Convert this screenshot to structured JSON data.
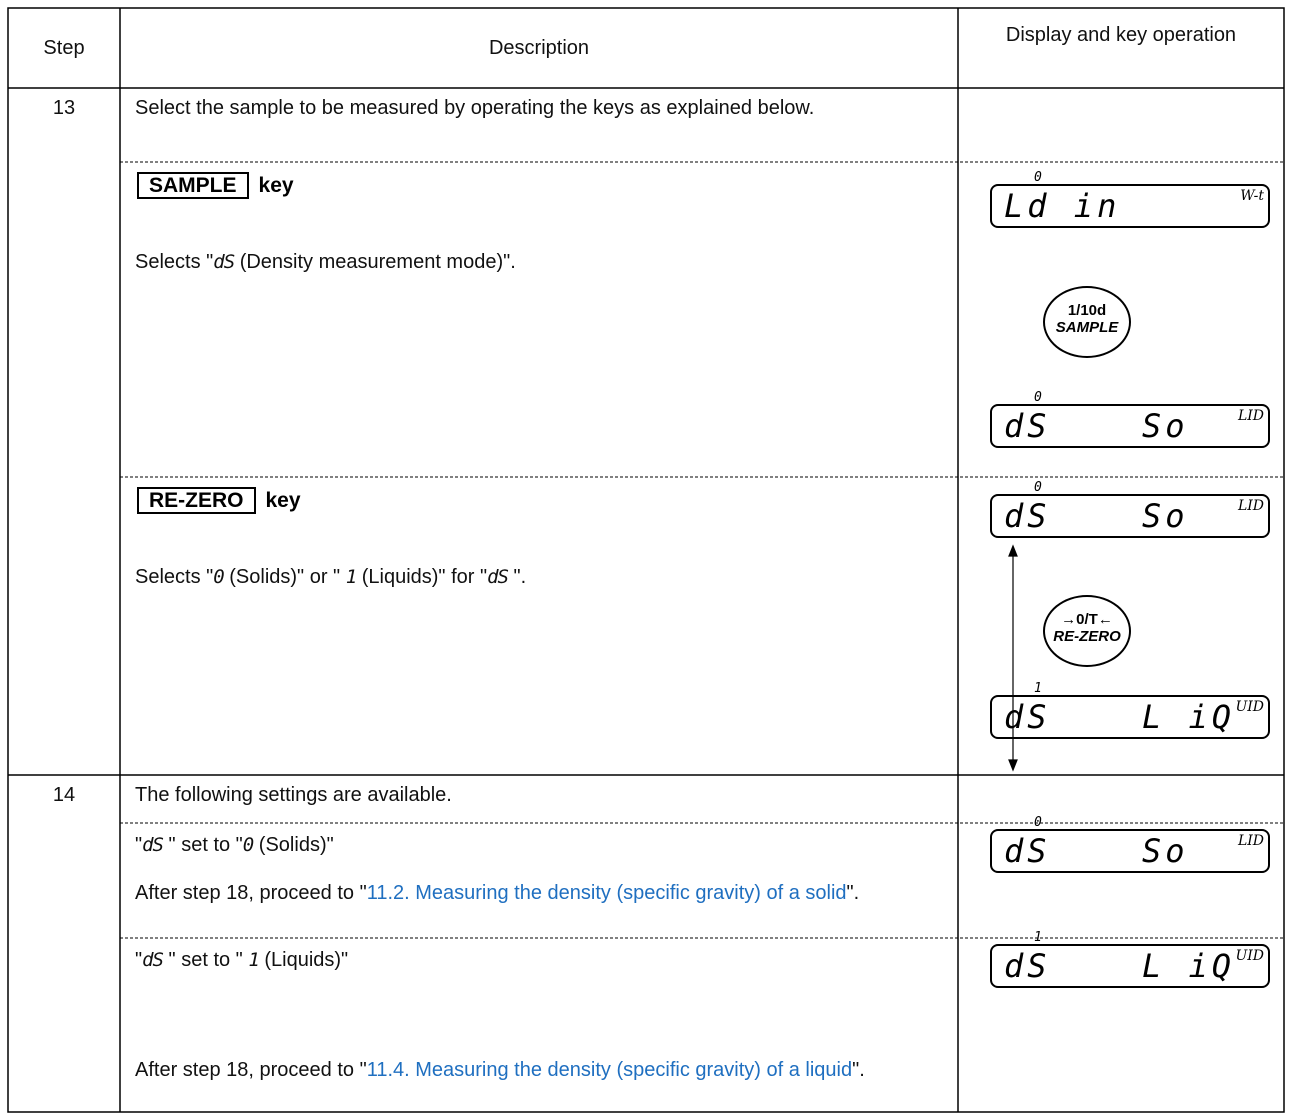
{
  "table": {
    "headers": {
      "step": "Step",
      "description": "Description",
      "display": "Display and key operation"
    },
    "steps": [
      {
        "number": "13",
        "intro": "Select the sample to be measured by operating the keys as explained below.",
        "items": [
          {
            "key": "SAMPLE",
            "key_suffix": "key",
            "text": [
              "Selects \"",
              "dS",
              " (Density measurement mode)\"."
            ],
            "displays": [
              {
                "marker": "0",
                "main": "Ld in",
                "unit": "W-t"
              },
              {
                "marker": "0",
                "main": "dS",
                "right": "So",
                "unit": "LID"
              }
            ],
            "button": {
              "top": "1/10d",
              "bottom": "SAMPLE"
            }
          },
          {
            "key": "RE-ZERO",
            "key_suffix": "key",
            "text": [
              "Selects \"",
              "0",
              " (Solids)\" or \" ",
              "1",
              " (Liquids)\" for \"",
              "dS",
              " \"."
            ],
            "displays": [
              {
                "marker": "0",
                "main": "dS",
                "right": "So",
                "unit": "LID"
              },
              {
                "marker": "1",
                "main": "dS",
                "right": "L iQ",
                "unit": "UID"
              }
            ],
            "button": {
              "top": "→0/T←",
              "bottom": "RE-ZERO"
            }
          }
        ]
      },
      {
        "number": "14",
        "intro": "The following settings are available.",
        "items": [
          {
            "text": [
              "\"",
              "dS",
              " \" set to \"",
              "0",
              " (Solids)\""
            ],
            "note": [
              "After step 18, proceed to \"",
              "11.2. Measuring the density (specific gravity) of a solid",
              "\"."
            ],
            "displays": [
              {
                "marker": "0",
                "main": "dS",
                "right": "So",
                "unit": "LID"
              }
            ]
          },
          {
            "text": [
              "\"",
              "dS",
              " \" set to \" ",
              "1",
              " (Liquids)\""
            ],
            "note": [
              "After step 18, proceed to \"",
              "11.4. Measuring the density (specific gravity) of a liquid",
              "\"."
            ],
            "displays": [
              {
                "marker": "1",
                "main": "dS",
                "right": "L iQ",
                "unit": "UID"
              }
            ]
          }
        ]
      }
    ]
  }
}
